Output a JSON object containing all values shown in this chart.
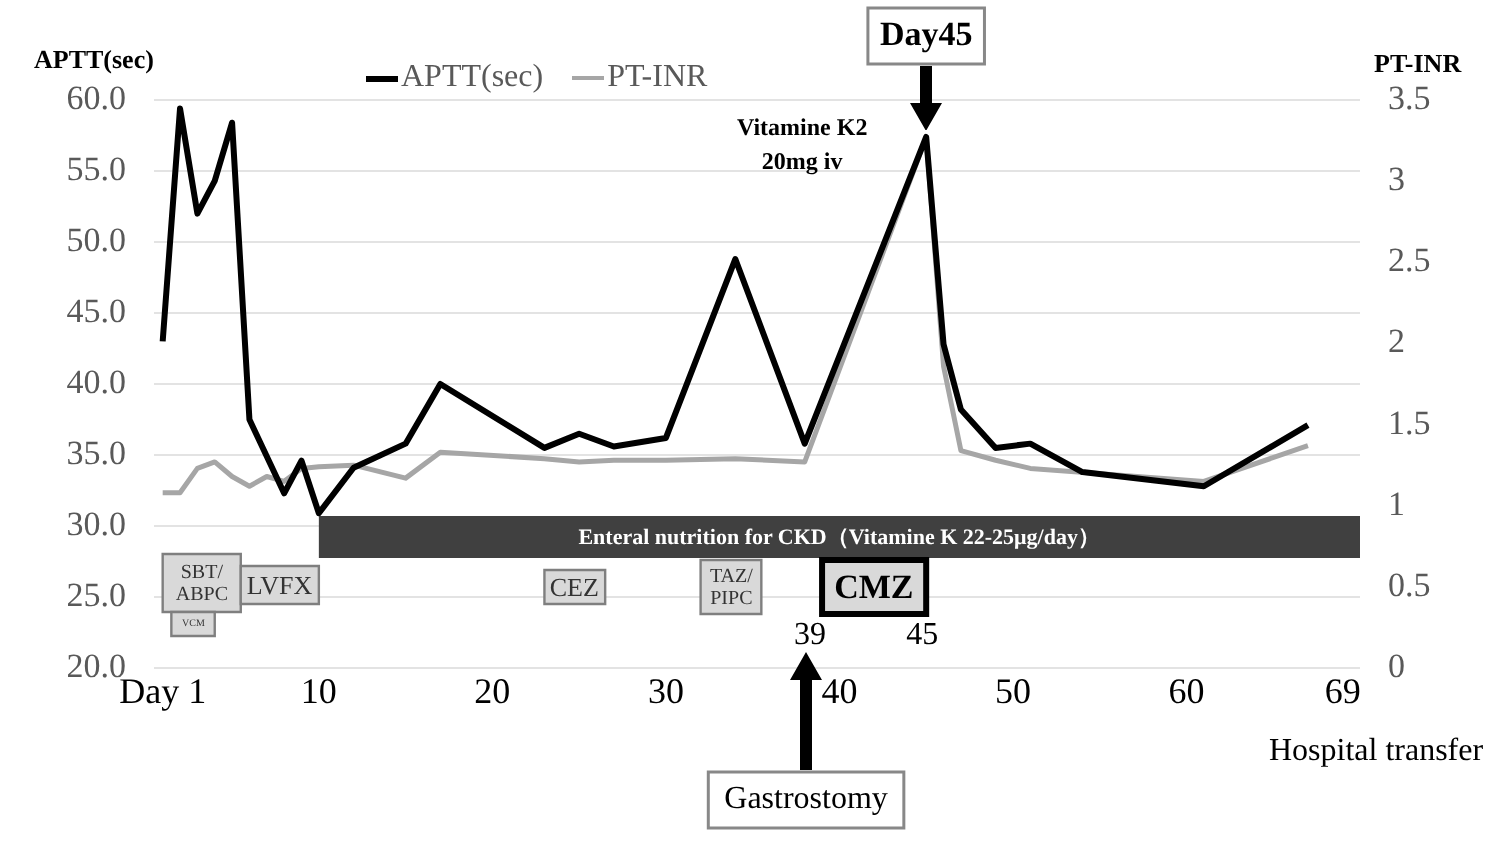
{
  "chart_data": {
    "type": "line",
    "ylabel": "APTT(sec)",
    "y2label": "PT-INR",
    "legend": "top",
    "grid": "y",
    "marker": "none",
    "line_style": "solid",
    "xlim": [
      0.5,
      70
    ],
    "xticks": [
      {
        "value": 1,
        "label": "Day 1"
      },
      10,
      20,
      30,
      40,
      50,
      60,
      69
    ],
    "ylim": [
      20,
      60
    ],
    "yticks": [
      {
        "value": 20,
        "label": "20.0"
      },
      {
        "value": 25,
        "label": "25.0"
      },
      {
        "value": 30,
        "label": "30.0"
      },
      {
        "value": 35,
        "label": "35.0"
      },
      {
        "value": 40,
        "label": "40.0"
      },
      {
        "value": 45,
        "label": "45.0"
      },
      {
        "value": 50,
        "label": "50.0"
      },
      {
        "value": 55,
        "label": "55.0"
      },
      {
        "value": 60,
        "label": "60.0"
      }
    ],
    "y2lim": [
      0,
      3.5
    ],
    "y2ticks": [
      0,
      0.5,
      1,
      1.5,
      2,
      2.5,
      3,
      3.5
    ],
    "series": [
      {
        "name": "APTT(sec)",
        "color": "#000000",
        "x": [
          1,
          2,
          3,
          4,
          5,
          6,
          8,
          9,
          10,
          12,
          15,
          17,
          23,
          25,
          27,
          30,
          34,
          38,
          45,
          46,
          47,
          49,
          51,
          54,
          61,
          67
        ],
        "values": [
          43.0,
          59.4,
          52.0,
          54.3,
          58.4,
          37.5,
          32.3,
          34.6,
          30.9,
          34.1,
          35.8,
          40.0,
          35.5,
          36.5,
          35.6,
          36.2,
          48.8,
          35.8,
          57.4,
          42.8,
          38.2,
          35.5,
          35.8,
          33.8,
          32.8,
          37.1
        ]
      },
      {
        "name": "PT-INR",
        "color": "#a6a6a6",
        "axis": "y2",
        "x": [
          1,
          2,
          3,
          4,
          5,
          6,
          7,
          8,
          9,
          10,
          12,
          15,
          17,
          23,
          25,
          27,
          30,
          34,
          38,
          45,
          46,
          47,
          49,
          51,
          61,
          67
        ],
        "values": [
          1.08,
          1.08,
          1.23,
          1.27,
          1.18,
          1.12,
          1.18,
          1.15,
          1.23,
          1.24,
          1.25,
          1.17,
          1.33,
          1.29,
          1.27,
          1.28,
          1.28,
          1.29,
          1.27,
          3.27,
          1.86,
          1.34,
          1.28,
          1.23,
          1.15,
          1.37
        ]
      }
    ],
    "bands": [
      {
        "axis": "x",
        "from": 10,
        "to": 70,
        "label": "Enteral nutrition for CKD（Vitamine K 22-25μg/day）",
        "color": "#404040"
      },
      {
        "axis": "x",
        "from": 1,
        "to": 5.5,
        "label": "SBT/ABPC",
        "color": "#d9d9d9"
      },
      {
        "axis": "x",
        "from": 5.5,
        "to": 10,
        "label": "LVFX",
        "color": "#d9d9d9"
      },
      {
        "axis": "x",
        "from": 1.5,
        "to": 4,
        "label": "VCM",
        "color": "#d9d9d9"
      },
      {
        "axis": "x",
        "from": 23,
        "to": 26.5,
        "label": "CEZ",
        "color": "#d9d9d9"
      },
      {
        "axis": "x",
        "from": 32,
        "to": 35.5,
        "label": "TAZ/PIPC",
        "color": "#d9d9d9"
      },
      {
        "axis": "x",
        "from": 39,
        "to": 45,
        "label": "CMZ",
        "color": "#d9d9d9"
      }
    ],
    "annotations": [
      {
        "text": "Vitamine K2 20mg iv",
        "x": 45,
        "y": 57.4
      },
      {
        "text": "Day45",
        "x": 45,
        "y": 57.4
      },
      "39",
      "45",
      "Gastrostomy",
      "Hospital transfer"
    ]
  }
}
